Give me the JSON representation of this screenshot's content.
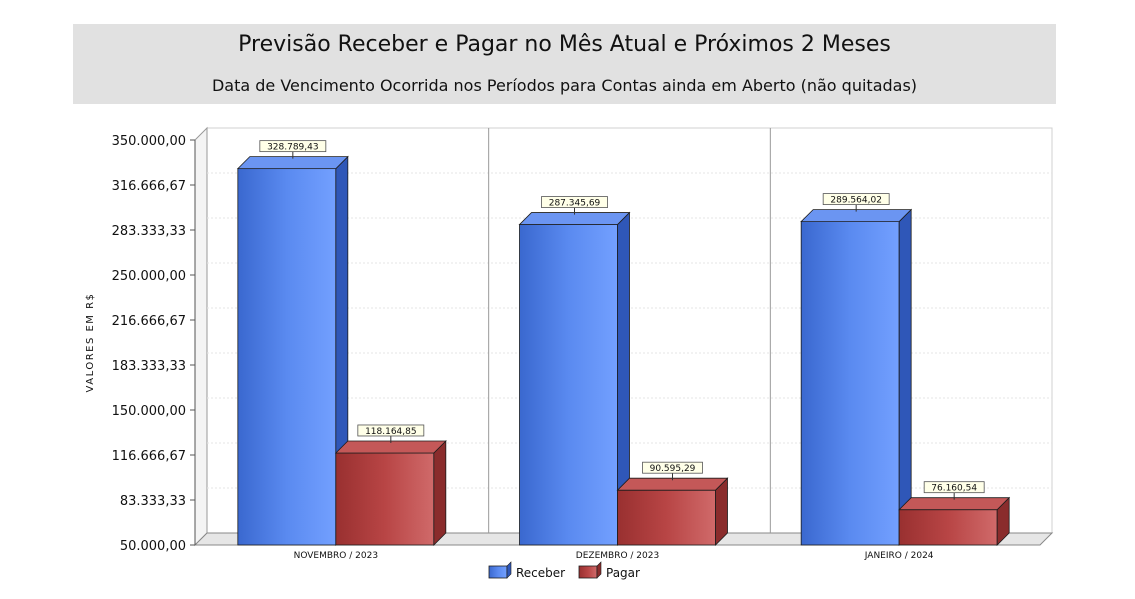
{
  "chart_data": {
    "type": "bar",
    "title": "Previsão Receber e Pagar no Mês Atual e Próximos 2 Meses",
    "subtitle": "Data de Vencimento Ocorrida nos Períodos para Contas ainda em Aberto (não quitadas)",
    "xlabel": "",
    "ylabel": "VALORES EM R$",
    "categories": [
      "NOVEMBRO / 2023",
      "DEZEMBRO / 2023",
      "JANEIRO / 2024"
    ],
    "series": [
      {
        "name": "Receber",
        "color": "#4a7de0",
        "values": [
          328789.43,
          287345.69,
          289564.02
        ],
        "labels": [
          "328.789,43",
          "287.345,69",
          "289.564,02"
        ]
      },
      {
        "name": "Pagar",
        "color": "#b84040",
        "values": [
          118164.85,
          90595.29,
          76160.54
        ],
        "labels": [
          "118.164,85",
          "90.595,29",
          "76.160,54"
        ]
      }
    ],
    "ylim": [
      50000,
      350000
    ],
    "yticks": [
      350000,
      316666.67,
      283333.33,
      250000,
      216666.67,
      183333.33,
      150000,
      116666.67,
      83333.33,
      50000
    ],
    "ytick_labels": [
      "350.000,00",
      "316.666,67",
      "283.333,33",
      "250.000,00",
      "216.666,67",
      "183.333,33",
      "150.000,00",
      "116.666,67",
      "83.333,33",
      "50.000,00"
    ],
    "grid": true,
    "legend_position": "bottom-center"
  }
}
